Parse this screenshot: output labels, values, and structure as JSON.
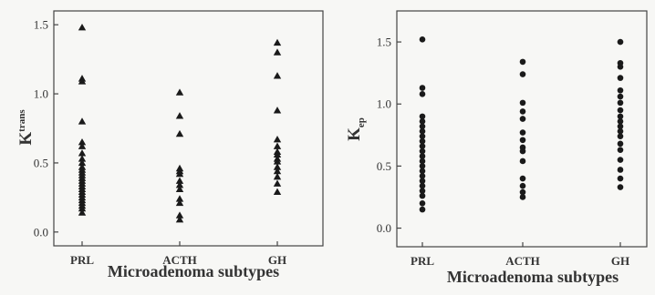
{
  "chart_data": [
    {
      "type": "scatter",
      "marker": "triangle",
      "ylabel": "K",
      "ylabel_sup": "trans",
      "xlabel": "Microadenoma subtypes",
      "categories": [
        "PRL",
        "ACTH",
        "GH"
      ],
      "ylim": [
        -0.1,
        1.6
      ],
      "yticks": [
        0.0,
        0.5,
        1.0,
        1.5
      ],
      "ytick_labels": [
        "0.0",
        "0.5",
        "1.0",
        "1.5"
      ],
      "grid": false,
      "series": [
        {
          "category": "PRL",
          "values": [
            1.48,
            1.11,
            1.09,
            0.8,
            0.65,
            0.62,
            0.57,
            0.53,
            0.5,
            0.47,
            0.45,
            0.43,
            0.41,
            0.39,
            0.37,
            0.35,
            0.33,
            0.31,
            0.29,
            0.27,
            0.25,
            0.23,
            0.21,
            0.19,
            0.17,
            0.14
          ]
        },
        {
          "category": "ACTH",
          "values": [
            1.01,
            0.84,
            0.71,
            0.46,
            0.44,
            0.42,
            0.37,
            0.34,
            0.31,
            0.24,
            0.21,
            0.12,
            0.09
          ]
        },
        {
          "category": "GH",
          "values": [
            1.37,
            1.3,
            1.13,
            0.88,
            0.67,
            0.62,
            0.58,
            0.56,
            0.53,
            0.51,
            0.47,
            0.44,
            0.4,
            0.35,
            0.29
          ]
        }
      ]
    },
    {
      "type": "scatter",
      "marker": "circle",
      "ylabel": "K",
      "ylabel_sub": "ep",
      "xlabel": "Microadenoma subtypes",
      "categories": [
        "PRL",
        "ACTH",
        "GH"
      ],
      "ylim": [
        -0.15,
        1.75
      ],
      "yticks": [
        0.0,
        0.5,
        1.0,
        1.5
      ],
      "ytick_labels": [
        "0.0",
        "0.5",
        "1.0",
        "1.5"
      ],
      "grid": false,
      "series": [
        {
          "category": "PRL",
          "values": [
            1.52,
            1.13,
            1.08,
            0.9,
            0.86,
            0.82,
            0.78,
            0.74,
            0.7,
            0.66,
            0.62,
            0.58,
            0.54,
            0.5,
            0.46,
            0.42,
            0.38,
            0.34,
            0.3,
            0.26,
            0.2,
            0.15
          ]
        },
        {
          "category": "ACTH",
          "values": [
            1.34,
            1.24,
            1.01,
            0.94,
            0.88,
            0.77,
            0.71,
            0.65,
            0.62,
            0.54,
            0.4,
            0.34,
            0.29,
            0.25
          ]
        },
        {
          "category": "GH",
          "values": [
            1.5,
            1.33,
            1.3,
            1.21,
            1.11,
            1.06,
            1.01,
            0.95,
            0.9,
            0.86,
            0.82,
            0.78,
            0.74,
            0.68,
            0.63,
            0.55,
            0.47,
            0.4,
            0.33
          ]
        }
      ]
    }
  ]
}
